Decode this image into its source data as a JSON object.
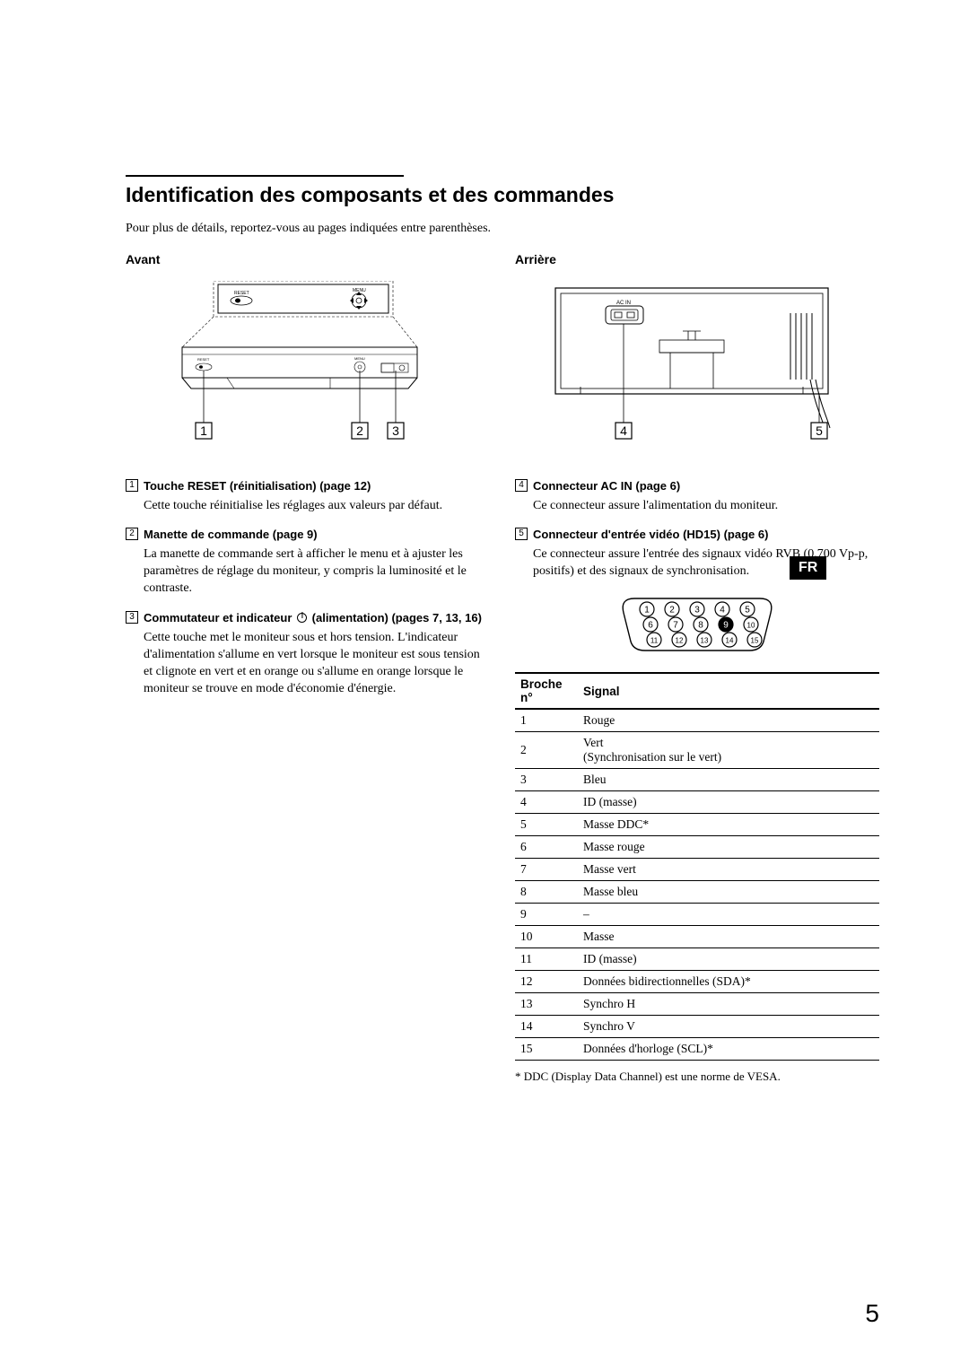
{
  "title": "Identification des composants et des commandes",
  "intro": "Pour plus de détails, reportez-vous au pages indiquées entre parenthèses.",
  "front_heading": "Avant",
  "rear_heading": "Arrière",
  "lang_badge": "FR",
  "page_number": "5",
  "front_diagram": {
    "callouts": [
      "1",
      "2",
      "3"
    ],
    "labels": {
      "menu": "MENU",
      "reset": "RESET"
    }
  },
  "rear_diagram": {
    "callouts": [
      "4",
      "5"
    ],
    "labels": {
      "acin": "AC IN"
    }
  },
  "pin_diagram": {
    "row1": [
      "1",
      "2",
      "3",
      "4",
      "5"
    ],
    "row2": [
      "6",
      "7",
      "8",
      "9",
      "10"
    ],
    "row3": [
      "11",
      "12",
      "13",
      "14",
      "15"
    ],
    "filled_pin": "9"
  },
  "items": [
    {
      "num": "1",
      "title": "Touche RESET (réinitialisation) (page 12)",
      "body": "Cette touche réinitialise les réglages aux valeurs par défaut."
    },
    {
      "num": "2",
      "title": "Manette de commande (page 9)",
      "body": "La manette de commande sert à afficher le menu et à ajuster les paramètres de réglage du moniteur, y compris la luminosité et le contraste."
    },
    {
      "num": "3",
      "title_pre": "Commutateur et indicateur ",
      "title_post": " (alimentation) (pages 7, 13, 16)",
      "body": "Cette touche met le moniteur sous et hors tension. L'indicateur d'alimentation s'allume en vert lorsque le moniteur est sous tension et clignote en vert et en orange ou s'allume en orange lorsque le moniteur se trouve en mode d'économie d'énergie."
    },
    {
      "num": "4",
      "title": "Connecteur AC IN (page 6)",
      "body": "Ce connecteur assure l'alimentation du moniteur."
    },
    {
      "num": "5",
      "title": "Connecteur d'entrée vidéo (HD15) (page 6)",
      "body": "Ce connecteur assure l'entrée des signaux vidéo RVB (0,700 Vp-p, positifs) et des signaux de synchronisation."
    }
  ],
  "table": {
    "headers": [
      "Broche n°",
      "Signal"
    ],
    "rows": [
      [
        "1",
        "Rouge"
      ],
      [
        "2",
        "Vert\n(Synchronisation sur le vert)"
      ],
      [
        "3",
        "Bleu"
      ],
      [
        "4",
        "ID (masse)"
      ],
      [
        "5",
        "Masse DDC*"
      ],
      [
        "6",
        "Masse rouge"
      ],
      [
        "7",
        "Masse vert"
      ],
      [
        "8",
        "Masse bleu"
      ],
      [
        "9",
        "–"
      ],
      [
        "10",
        "Masse"
      ],
      [
        "11",
        "ID (masse)"
      ],
      [
        "12",
        "Données bidirectionnelles (SDA)*"
      ],
      [
        "13",
        "Synchro H"
      ],
      [
        "14",
        "Synchro V"
      ],
      [
        "15",
        "Données d'horloge (SCL)*"
      ]
    ]
  },
  "footnote": "* DDC (Display Data Channel) est une norme de VESA."
}
